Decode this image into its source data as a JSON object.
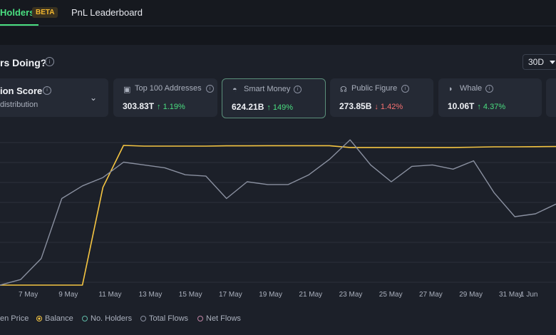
{
  "tabs": {
    "holders": "Holders",
    "beta": "BETA",
    "pnl": "PnL Leaderboard"
  },
  "section": {
    "title": "rs Doing?",
    "range": "30D"
  },
  "score_card": {
    "title": "ion Score",
    "subtitle": "distribution"
  },
  "cards": [
    {
      "icon": "wallet-icon",
      "label": "Top 100 Addresses",
      "value": "303.83T",
      "change": "↑ 1.19%",
      "dir": "up"
    },
    {
      "icon": "smart-money-icon",
      "label": "Smart Money",
      "value": "624.21B",
      "change": "↑ 149%",
      "dir": "up"
    },
    {
      "icon": "public-figure-icon",
      "label": "Public Figure",
      "value": "273.85B",
      "change": "↓ 1.42%",
      "dir": "down"
    },
    {
      "icon": "whale-icon",
      "label": "Whale",
      "value": "10.06T",
      "change": "↑ 4.37%",
      "dir": "up"
    }
  ],
  "colors": {
    "accent": "#4ade80",
    "balance": "#f5c542",
    "price": "#8a90a0",
    "down": "#f87171"
  },
  "chart_data": {
    "type": "line",
    "x_ticks": [
      "7 May",
      "9 May",
      "11 May",
      "13 May",
      "15 May",
      "17 May",
      "19 May",
      "21 May",
      "23 May",
      "25 May",
      "27 May",
      "29 May",
      "31 May",
      "1 Jun"
    ],
    "series": [
      {
        "name": "Balance",
        "color": "#f5c542",
        "values": [
          0,
          0,
          0,
          0,
          0,
          0.7,
          1.0,
          0.995,
          0.995,
          0.995,
          0.995,
          0.997,
          0.997,
          0.998,
          0.998,
          0.998,
          0.998,
          0.985,
          0.985,
          0.985,
          0.985,
          0.985,
          0.985,
          0.987,
          0.99,
          0.99,
          0.991,
          0.992
        ]
      },
      {
        "name": "Token Price",
        "color": "#8a90a0",
        "values": [
          0.0,
          0.04,
          0.19,
          0.62,
          0.71,
          0.77,
          0.88,
          0.86,
          0.84,
          0.79,
          0.78,
          0.62,
          0.74,
          0.72,
          0.72,
          0.79,
          0.9,
          1.04,
          0.86,
          0.74,
          0.85,
          0.86,
          0.83,
          0.89,
          0.66,
          0.49,
          0.51,
          0.58
        ]
      }
    ],
    "grid": true
  },
  "legend": [
    {
      "label": "en Price",
      "kind": "partial"
    },
    {
      "label": "Balance",
      "kind": "balance",
      "active": true
    },
    {
      "label": "No. Holders",
      "kind": "holders"
    },
    {
      "label": "Total Flows",
      "kind": "flows"
    },
    {
      "label": "Net Flows",
      "kind": "net"
    }
  ]
}
